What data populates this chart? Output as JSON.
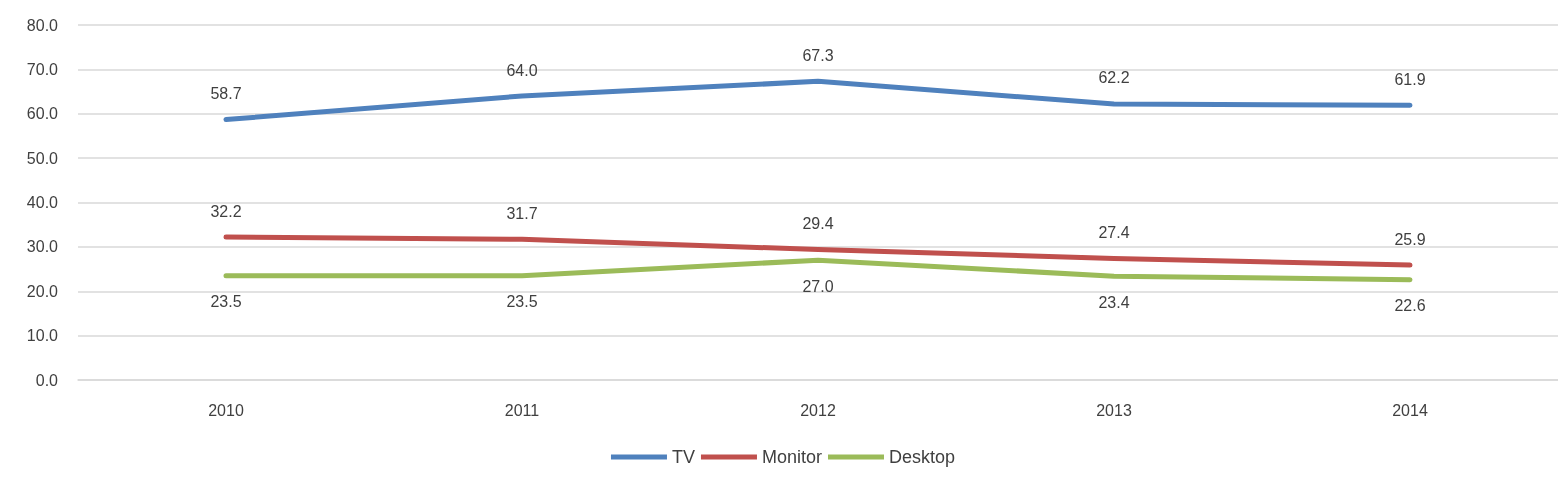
{
  "chart_data": {
    "type": "line",
    "categories": [
      "2010",
      "2011",
      "2012",
      "2013",
      "2014"
    ],
    "series": [
      {
        "name": "TV",
        "color": "#4f81bd",
        "values": [
          58.7,
          64.0,
          67.3,
          62.2,
          61.9
        ],
        "value_labels": [
          "58.7",
          "64.0",
          "67.3",
          "62.2",
          "61.9"
        ]
      },
      {
        "name": "Monitor",
        "color": "#c0504d",
        "values": [
          32.2,
          31.7,
          29.4,
          27.4,
          25.9
        ],
        "value_labels": [
          "32.2",
          "31.7",
          "29.4",
          "27.4",
          "25.9"
        ]
      },
      {
        "name": "Desktop",
        "color": "#9bbb59",
        "values": [
          23.5,
          23.5,
          27.0,
          23.4,
          22.6
        ],
        "value_labels": [
          "23.5",
          "23.5",
          "27.0",
          "23.4",
          "22.6"
        ]
      }
    ],
    "ylim": [
      0,
      80
    ],
    "yticks": [
      {
        "value": 0,
        "label": "0.0"
      },
      {
        "value": 10,
        "label": "10.0"
      },
      {
        "value": 20,
        "label": "20.0"
      },
      {
        "value": 30,
        "label": "30.0"
      },
      {
        "value": 40,
        "label": "40.0"
      },
      {
        "value": 50,
        "label": "50.0"
      },
      {
        "value": 60,
        "label": "60.0"
      },
      {
        "value": 70,
        "label": "70.0"
      },
      {
        "value": 80,
        "label": "80.0"
      }
    ],
    "grid": "y",
    "legend": "bottom",
    "marker": "none",
    "line_style": "solid"
  }
}
